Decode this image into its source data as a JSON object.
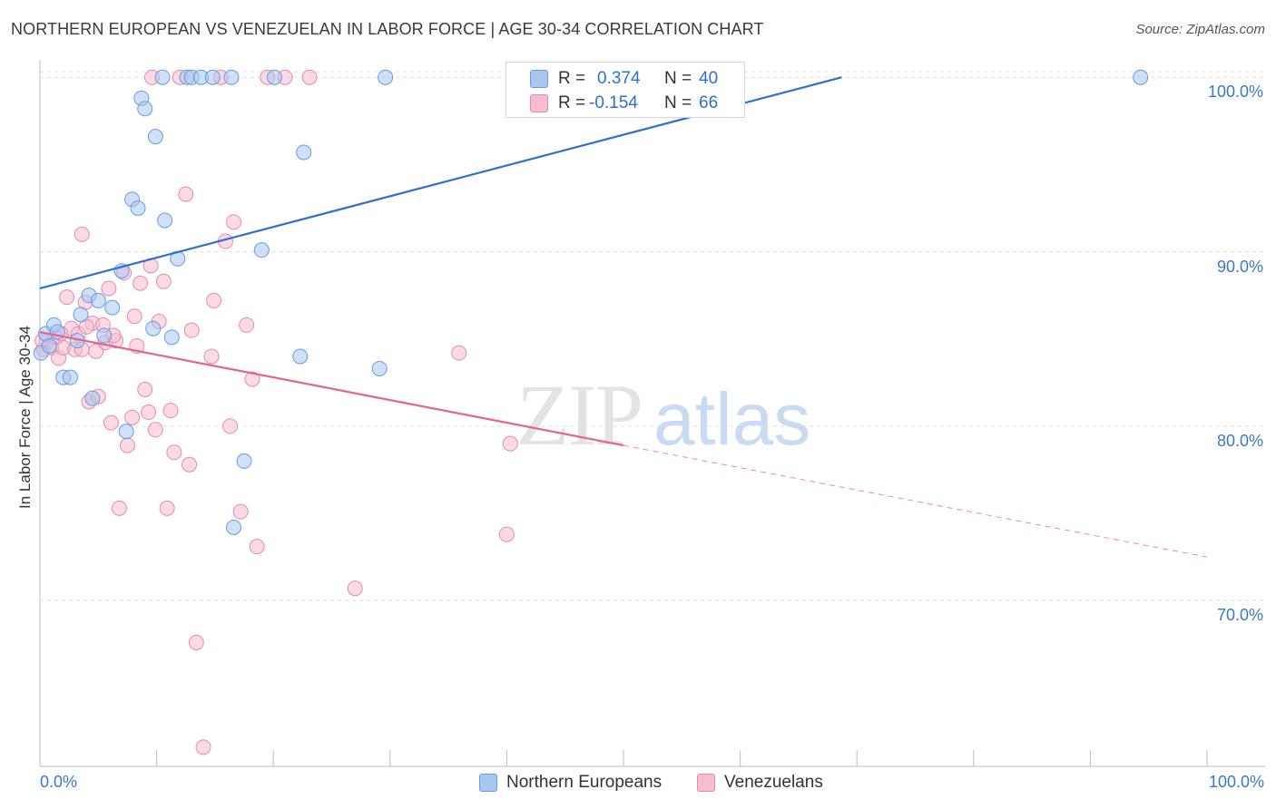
{
  "header": {
    "title": "NORTHERN EUROPEAN VS VENEZUELAN IN LABOR FORCE | AGE 30-34 CORRELATION CHART",
    "source": "Source: ZipAtlas.com"
  },
  "watermark": {
    "zip": "ZIP",
    "atlas": "atlas"
  },
  "stats": [
    {
      "r_label": "R =",
      "r_value": "0.374",
      "n_label": "N =",
      "n_value": "40",
      "color": "#a9c7ee",
      "border": "#6a9be0"
    },
    {
      "r_label": "R =",
      "r_value": "-0.154",
      "n_label": "N =",
      "n_value": "66",
      "color": "#f6bcd0",
      "border": "#e98aab"
    }
  ],
  "legend": [
    {
      "label": "Northern Europeans",
      "color": "#a9c7ee",
      "border": "#6a9be0"
    },
    {
      "label": "Venezuelans",
      "color": "#f6bcd0",
      "border": "#e98aab"
    }
  ],
  "chart_data": {
    "type": "scatter",
    "title": "NORTHERN EUROPEAN VS VENEZUELAN IN LABOR FORCE | AGE 30-34 CORRELATION CHART",
    "xlabel": "",
    "ylabel": "In Labor Force | Age 30-34",
    "xlim": [
      0,
      100
    ],
    "ylim": [
      60.5,
      101
    ],
    "x_tick_labels": [
      "0.0%",
      "100.0%"
    ],
    "y_ticks": [
      70,
      80,
      90,
      100
    ],
    "y_tick_labels": [
      "70.0%",
      "80.0%",
      "90.0%",
      "100.0%"
    ],
    "grid": true,
    "legend_position": "bottom-center",
    "series": [
      {
        "name": "Northern Europeans",
        "color": "#6a9be0",
        "fill": "#a9c7ee",
        "trend": {
          "x0": 0,
          "y0": 87.9,
          "x1": 68.7,
          "y1": 100.0,
          "style": "solid"
        },
        "points": [
          [
            0.1,
            84.2
          ],
          [
            0.5,
            85.3
          ],
          [
            0.8,
            84.6
          ],
          [
            1.2,
            85.8
          ],
          [
            1.5,
            85.4
          ],
          [
            2.0,
            82.8
          ],
          [
            2.6,
            82.8
          ],
          [
            3.2,
            84.9
          ],
          [
            3.5,
            86.4
          ],
          [
            4.2,
            87.5
          ],
          [
            4.5,
            81.6
          ],
          [
            5.0,
            87.2
          ],
          [
            5.5,
            85.2
          ],
          [
            6.2,
            86.8
          ],
          [
            7.0,
            88.9
          ],
          [
            7.4,
            79.7
          ],
          [
            7.9,
            93.0
          ],
          [
            8.4,
            92.5
          ],
          [
            8.7,
            98.8
          ],
          [
            9.0,
            98.2
          ],
          [
            9.7,
            85.6
          ],
          [
            9.9,
            96.6
          ],
          [
            10.5,
            100
          ],
          [
            10.7,
            91.8
          ],
          [
            11.3,
            85.1
          ],
          [
            11.8,
            89.6
          ],
          [
            12.6,
            100
          ],
          [
            13.0,
            100
          ],
          [
            13.8,
            100
          ],
          [
            14.8,
            100
          ],
          [
            16.4,
            100
          ],
          [
            16.6,
            74.2
          ],
          [
            17.5,
            78.0
          ],
          [
            19.0,
            90.1
          ],
          [
            20.1,
            100
          ],
          [
            22.3,
            84.0
          ],
          [
            22.6,
            95.7
          ],
          [
            29.1,
            83.3
          ],
          [
            29.6,
            100
          ],
          [
            94.3,
            100
          ]
        ]
      },
      {
        "name": "Venezuelans",
        "color": "#e98aab",
        "fill": "#f6bcd0",
        "trend": {
          "x0": 0,
          "y0": 85.4,
          "x1": 50.0,
          "y1": 78.9,
          "dash_x1": 100.0,
          "dash_y1": 72.5,
          "style": "solid-then-dashed"
        },
        "points": [
          [
            0.3,
            84.4
          ],
          [
            0.6,
            84.9
          ],
          [
            1.0,
            84.5
          ],
          [
            1.4,
            85.1
          ],
          [
            1.6,
            83.9
          ],
          [
            2.0,
            84.5
          ],
          [
            2.3,
            87.4
          ],
          [
            2.7,
            85.6
          ],
          [
            3.0,
            84.4
          ],
          [
            3.3,
            85.3
          ],
          [
            3.6,
            84.4
          ],
          [
            3.6,
            91.0
          ],
          [
            3.9,
            87.1
          ],
          [
            4.2,
            81.4
          ],
          [
            4.5,
            85.9
          ],
          [
            4.8,
            84.3
          ],
          [
            5.0,
            81.7
          ],
          [
            5.4,
            85.8
          ],
          [
            5.6,
            84.8
          ],
          [
            5.9,
            87.9
          ],
          [
            6.1,
            80.2
          ],
          [
            6.5,
            84.9
          ],
          [
            6.8,
            75.3
          ],
          [
            7.2,
            88.8
          ],
          [
            7.5,
            78.9
          ],
          [
            7.9,
            80.5
          ],
          [
            8.1,
            86.3
          ],
          [
            8.6,
            88.2
          ],
          [
            9.0,
            82.1
          ],
          [
            9.3,
            80.8
          ],
          [
            9.5,
            89.2
          ],
          [
            9.9,
            79.8
          ],
          [
            10.2,
            86.0
          ],
          [
            10.6,
            88.3
          ],
          [
            10.9,
            75.3
          ],
          [
            11.2,
            80.9
          ],
          [
            11.5,
            78.5
          ],
          [
            12.0,
            100
          ],
          [
            12.5,
            93.3
          ],
          [
            12.8,
            77.8
          ],
          [
            13.0,
            85.5
          ],
          [
            13.4,
            67.6
          ],
          [
            14.0,
            61.6
          ],
          [
            14.7,
            84.0
          ],
          [
            14.9,
            87.2
          ],
          [
            15.5,
            100
          ],
          [
            15.9,
            90.6
          ],
          [
            16.3,
            80.0
          ],
          [
            16.6,
            91.7
          ],
          [
            17.2,
            75.1
          ],
          [
            17.7,
            85.8
          ],
          [
            18.2,
            82.7
          ],
          [
            18.6,
            73.1
          ],
          [
            19.5,
            100
          ],
          [
            21.0,
            100
          ],
          [
            23.1,
            100
          ],
          [
            27.0,
            70.7
          ],
          [
            35.9,
            84.2
          ],
          [
            40.0,
            73.8
          ],
          [
            40.3,
            79.0
          ],
          [
            0.2,
            84.9
          ],
          [
            1.8,
            85.3
          ],
          [
            4.0,
            85.7
          ],
          [
            6.3,
            85.2
          ],
          [
            8.3,
            84.6
          ],
          [
            9.6,
            100
          ]
        ]
      }
    ]
  }
}
